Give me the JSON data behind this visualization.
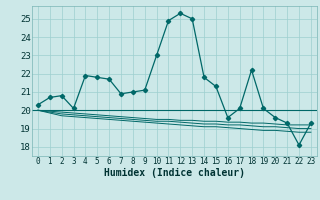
{
  "title": "",
  "xlabel": "Humidex (Indice chaleur)",
  "xlim": [
    -0.5,
    23.5
  ],
  "ylim": [
    17.5,
    25.7
  ],
  "yticks": [
    18,
    19,
    20,
    21,
    22,
    23,
    24,
    25
  ],
  "xticks": [
    0,
    1,
    2,
    3,
    4,
    5,
    6,
    7,
    8,
    9,
    10,
    11,
    12,
    13,
    14,
    15,
    16,
    17,
    18,
    19,
    20,
    21,
    22,
    23
  ],
  "bg_color": "#cce8e8",
  "grid_color": "#9dcfcf",
  "line_color": "#006868",
  "main_x": [
    0,
    1,
    2,
    3,
    4,
    5,
    6,
    7,
    8,
    9,
    10,
    11,
    12,
    13,
    14,
    15,
    16,
    17,
    18,
    19,
    20,
    21,
    22,
    23
  ],
  "main_y": [
    20.3,
    20.7,
    20.8,
    20.1,
    21.9,
    21.8,
    21.7,
    20.9,
    21.0,
    21.1,
    23.0,
    24.9,
    25.3,
    25.0,
    21.8,
    21.3,
    19.6,
    20.1,
    22.2,
    20.1,
    19.6,
    19.3,
    18.1,
    19.3
  ],
  "flat_y": 20.0,
  "line2_y": [
    20.0,
    19.95,
    19.9,
    19.85,
    19.8,
    19.75,
    19.7,
    19.65,
    19.6,
    19.55,
    19.5,
    19.5,
    19.45,
    19.45,
    19.4,
    19.4,
    19.35,
    19.35,
    19.3,
    19.3,
    19.25,
    19.2,
    19.2,
    19.2
  ],
  "line3_y": [
    20.0,
    19.9,
    19.8,
    19.75,
    19.7,
    19.65,
    19.6,
    19.55,
    19.5,
    19.45,
    19.4,
    19.4,
    19.35,
    19.3,
    19.25,
    19.25,
    19.2,
    19.2,
    19.15,
    19.1,
    19.1,
    19.05,
    19.0,
    19.0
  ],
  "line4_y": [
    20.0,
    19.85,
    19.7,
    19.65,
    19.6,
    19.55,
    19.5,
    19.45,
    19.4,
    19.35,
    19.3,
    19.25,
    19.2,
    19.15,
    19.1,
    19.1,
    19.05,
    19.0,
    18.95,
    18.9,
    18.9,
    18.85,
    18.8,
    18.8
  ]
}
